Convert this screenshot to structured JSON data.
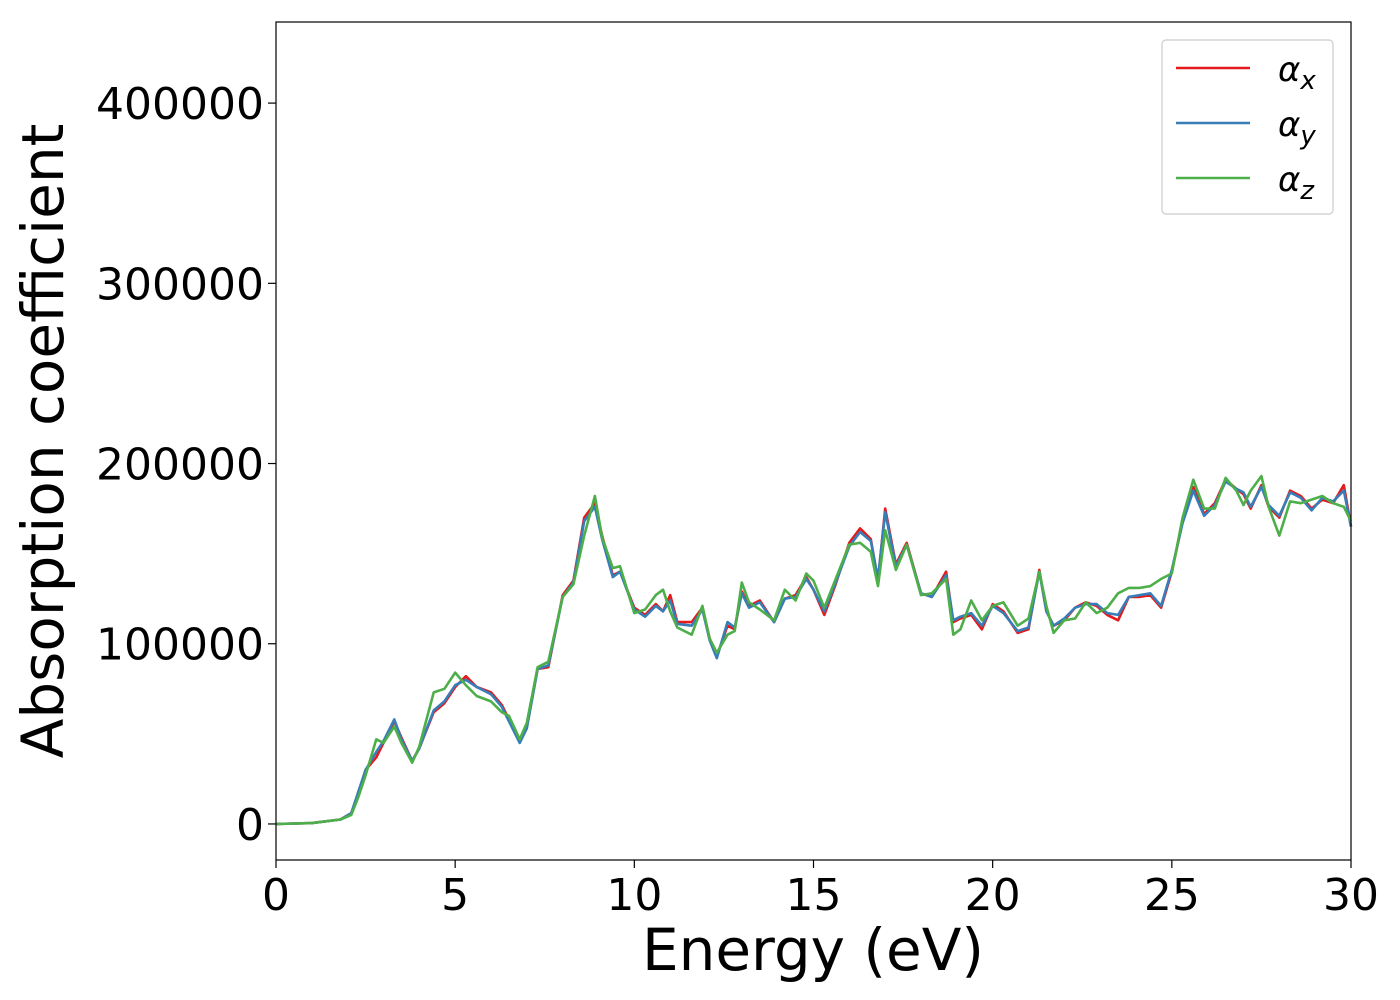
{
  "chart_data": {
    "type": "line",
    "title": "",
    "xlabel": "Energy (eV)",
    "ylabel": "Absorption coefficient",
    "xlim": [
      0,
      30
    ],
    "ylim": [
      -20000,
      445000
    ],
    "xticks": [
      0,
      5,
      10,
      15,
      20,
      25,
      30
    ],
    "yticks": [
      0,
      100000,
      200000,
      300000,
      400000
    ],
    "grid": false,
    "legend_position": "top-right",
    "series": [
      {
        "name": "αx",
        "legend_base": "α",
        "legend_sub": "x",
        "color": "#e41a1c",
        "x": [
          0,
          1,
          1.8,
          2.1,
          2.3,
          2.5,
          2.8,
          3.0,
          3.3,
          3.5,
          3.8,
          4.0,
          4.4,
          4.7,
          5.0,
          5.3,
          5.6,
          6.0,
          6.3,
          6.5,
          6.8,
          7.0,
          7.3,
          7.6,
          8.0,
          8.3,
          8.6,
          8.9,
          9.1,
          9.4,
          9.6,
          10.0,
          10.3,
          10.6,
          10.8,
          11.0,
          11.2,
          11.6,
          11.9,
          12.1,
          12.3,
          12.6,
          12.8,
          13.0,
          13.2,
          13.5,
          13.9,
          14.2,
          14.5,
          14.8,
          15.0,
          15.3,
          15.6,
          16.0,
          16.3,
          16.6,
          16.8,
          17.0,
          17.3,
          17.6,
          18.0,
          18.3,
          18.7,
          18.9,
          19.1,
          19.4,
          19.7,
          20.0,
          20.3,
          20.7,
          21.0,
          21.3,
          21.5,
          21.7,
          22.0,
          22.3,
          22.6,
          22.9,
          23.2,
          23.5,
          23.8,
          24.1,
          24.4,
          24.7,
          25.0,
          25.3,
          25.6,
          25.9,
          26.2,
          26.5,
          26.8,
          27.0,
          27.2,
          27.5,
          27.7,
          28.0,
          28.3,
          28.6,
          28.9,
          29.2,
          29.5,
          29.8,
          30.0
        ],
        "values": [
          0,
          500,
          2500,
          6000,
          17000,
          30000,
          37000,
          45000,
          57000,
          48000,
          35000,
          42000,
          62000,
          67000,
          76000,
          82000,
          76000,
          73000,
          66000,
          58000,
          46000,
          54000,
          86000,
          87000,
          127000,
          135000,
          170000,
          178000,
          160000,
          138000,
          140000,
          120000,
          116000,
          122000,
          118000,
          127000,
          112000,
          112000,
          120000,
          103000,
          93000,
          110000,
          108000,
          129000,
          121000,
          124000,
          112000,
          125000,
          127000,
          137000,
          130000,
          116000,
          132000,
          156000,
          164000,
          158000,
          135000,
          175000,
          144000,
          156000,
          128000,
          126000,
          140000,
          112000,
          114000,
          116000,
          108000,
          122000,
          118000,
          106000,
          108000,
          141000,
          118000,
          110000,
          113000,
          120000,
          123000,
          121000,
          116000,
          113000,
          126000,
          126000,
          127000,
          120000,
          140000,
          168000,
          187000,
          172000,
          178000,
          191000,
          186000,
          183000,
          175000,
          188000,
          176000,
          170000,
          185000,
          182000,
          175000,
          180000,
          178000,
          188000,
          165000
        ]
      },
      {
        "name": "αy",
        "legend_base": "α",
        "legend_sub": "y",
        "color": "#377eb8",
        "x": [
          0,
          1,
          1.8,
          2.1,
          2.3,
          2.5,
          2.8,
          3.0,
          3.3,
          3.5,
          3.8,
          4.0,
          4.4,
          4.7,
          5.0,
          5.3,
          5.6,
          6.0,
          6.3,
          6.5,
          6.8,
          7.0,
          7.3,
          7.6,
          8.0,
          8.3,
          8.6,
          8.9,
          9.1,
          9.4,
          9.6,
          10.0,
          10.3,
          10.6,
          10.8,
          11.0,
          11.2,
          11.6,
          11.9,
          12.1,
          12.3,
          12.6,
          12.8,
          13.0,
          13.2,
          13.5,
          13.9,
          14.2,
          14.5,
          14.8,
          15.0,
          15.3,
          15.6,
          16.0,
          16.3,
          16.6,
          16.8,
          17.0,
          17.3,
          17.6,
          18.0,
          18.3,
          18.7,
          18.9,
          19.1,
          19.4,
          19.7,
          20.0,
          20.3,
          20.7,
          21.0,
          21.3,
          21.5,
          21.7,
          22.0,
          22.3,
          22.6,
          22.9,
          23.2,
          23.5,
          23.8,
          24.1,
          24.4,
          24.7,
          25.0,
          25.3,
          25.6,
          25.9,
          26.2,
          26.5,
          26.8,
          27.0,
          27.2,
          27.5,
          27.7,
          28.0,
          28.3,
          28.6,
          28.9,
          29.2,
          29.5,
          29.8,
          30.0
        ],
        "values": [
          0,
          500,
          2500,
          6000,
          18000,
          30000,
          40000,
          46000,
          58000,
          47000,
          35000,
          42000,
          63000,
          68000,
          77000,
          80000,
          76000,
          72000,
          65000,
          57000,
          45000,
          53000,
          86000,
          88000,
          126000,
          134000,
          168000,
          176000,
          158000,
          137000,
          140000,
          119000,
          115000,
          121000,
          118000,
          124000,
          111000,
          110000,
          119000,
          102000,
          92000,
          112000,
          109000,
          128000,
          120000,
          123000,
          112000,
          125000,
          126000,
          136000,
          130000,
          118000,
          133000,
          154000,
          162000,
          157000,
          136000,
          173000,
          143000,
          155000,
          128000,
          126000,
          138000,
          113000,
          115000,
          117000,
          110000,
          121000,
          117000,
          107000,
          109000,
          140000,
          118000,
          110000,
          114000,
          120000,
          122000,
          122000,
          117000,
          116000,
          126000,
          127000,
          128000,
          121000,
          141000,
          167000,
          185000,
          171000,
          177000,
          190000,
          186000,
          184000,
          176000,
          187000,
          177000,
          171000,
          184000,
          181000,
          174000,
          181000,
          179000,
          185000,
          165000
        ]
      },
      {
        "name": "αz",
        "legend_base": "α",
        "legend_sub": "z",
        "color": "#4daf4a",
        "x": [
          0,
          1,
          1.8,
          2.1,
          2.3,
          2.5,
          2.8,
          3.0,
          3.3,
          3.5,
          3.8,
          4.0,
          4.4,
          4.7,
          5.0,
          5.3,
          5.6,
          6.0,
          6.3,
          6.5,
          6.8,
          7.0,
          7.3,
          7.6,
          8.0,
          8.3,
          8.6,
          8.9,
          9.1,
          9.4,
          9.6,
          10.0,
          10.3,
          10.6,
          10.8,
          11.0,
          11.2,
          11.6,
          11.9,
          12.1,
          12.3,
          12.6,
          12.8,
          13.0,
          13.2,
          13.5,
          13.9,
          14.2,
          14.5,
          14.8,
          15.0,
          15.3,
          15.6,
          16.0,
          16.3,
          16.6,
          16.8,
          17.0,
          17.3,
          17.6,
          18.0,
          18.3,
          18.7,
          18.9,
          19.1,
          19.4,
          19.7,
          20.0,
          20.3,
          20.7,
          21.0,
          21.3,
          21.5,
          21.7,
          22.0,
          22.3,
          22.6,
          22.9,
          23.2,
          23.5,
          23.8,
          24.1,
          24.4,
          24.7,
          25.0,
          25.3,
          25.6,
          25.9,
          26.2,
          26.5,
          26.8,
          27.0,
          27.2,
          27.5,
          27.7,
          28.0,
          28.3,
          28.6,
          28.9,
          29.2,
          29.5,
          29.8,
          30.0
        ],
        "values": [
          0,
          500,
          2500,
          5000,
          15000,
          27000,
          47000,
          45000,
          54000,
          45000,
          34000,
          43000,
          73000,
          75000,
          84000,
          77000,
          71000,
          68000,
          62000,
          60000,
          47000,
          56000,
          87000,
          90000,
          126000,
          133000,
          160000,
          182000,
          159000,
          142000,
          143000,
          117000,
          119000,
          127000,
          130000,
          118000,
          109000,
          105000,
          121000,
          103000,
          95000,
          105000,
          107000,
          134000,
          123000,
          119000,
          113000,
          130000,
          124000,
          139000,
          135000,
          120000,
          135000,
          155000,
          156000,
          151000,
          132000,
          163000,
          141000,
          155000,
          127000,
          128000,
          136000,
          105000,
          108000,
          124000,
          113000,
          121000,
          123000,
          110000,
          114000,
          140000,
          121000,
          106000,
          113000,
          114000,
          123000,
          117000,
          120000,
          128000,
          131000,
          131000,
          132000,
          136000,
          139000,
          170000,
          191000,
          175000,
          175000,
          192000,
          185000,
          177000,
          185000,
          193000,
          176000,
          160000,
          179000,
          178000,
          180000,
          182000,
          178000,
          176000,
          168000
        ]
      }
    ]
  }
}
